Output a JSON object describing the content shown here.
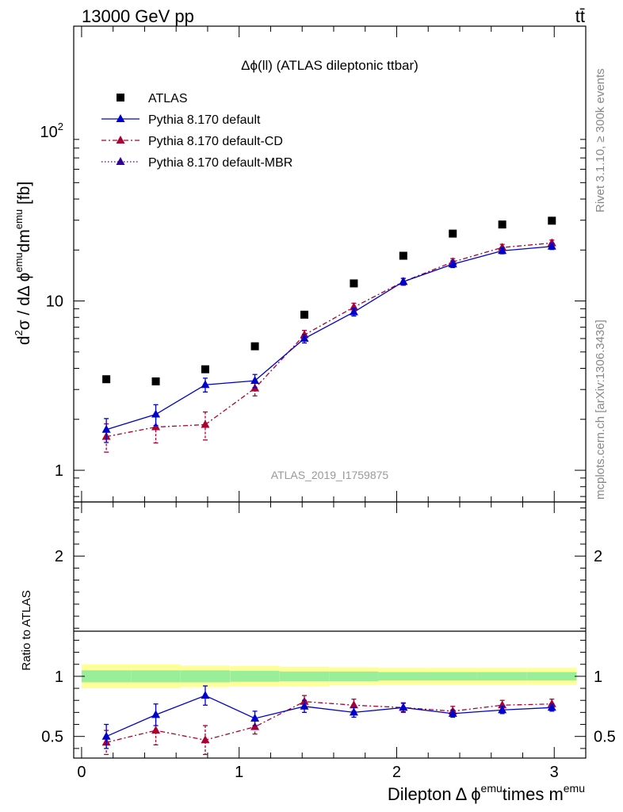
{
  "header": {
    "left": "13000 GeV pp",
    "right": "tt̄"
  },
  "side_labels": {
    "rivet": "Rivet 3.1.10, ≥ 300k events",
    "mcplots": "mcplots.cern.ch [arXiv:1306.3436]"
  },
  "plot": {
    "title": "Δϕ(ll) (ATLAS dileptonic ttbar)",
    "watermark": "ATLAS_2019_I1759875",
    "ylabel_parts": [
      "d",
      "2",
      "σ / dΔ ϕ",
      "emu",
      "dm",
      "emu",
      " [fb]"
    ],
    "ratio_ylabel": "Ratio to ATLAS",
    "xlabel_parts": [
      "Dilepton",
      "Δ ϕ",
      "emu",
      "times m",
      "emu"
    ]
  },
  "legend": [
    {
      "label": "ATLAS",
      "color": "#000000",
      "marker": "square",
      "line": "none"
    },
    {
      "label": "Pythia 8.170 default",
      "color": "#0000cc",
      "marker": "triangle",
      "line": "solid"
    },
    {
      "label": "Pythia 8.170 default-CD",
      "color": "#aa0033",
      "marker": "triangle",
      "line": "dashdot"
    },
    {
      "label": "Pythia 8.170 default-MBR",
      "color": "#330099",
      "marker": "triangle",
      "line": "dotted"
    }
  ],
  "chart_data": {
    "type": "scatter",
    "yscale": "log",
    "xlim": [
      -0.05,
      3.2
    ],
    "ylim": [
      0.65,
      420
    ],
    "ratio_ylim": [
      0.32,
      2.45
    ],
    "x_ticks": [
      "0",
      "1",
      "2",
      "3"
    ],
    "y_ticks": [
      "1",
      "10",
      "10²"
    ],
    "ratio_ticks": [
      "0.5",
      "1",
      "2"
    ],
    "x": [
      0.157,
      0.471,
      0.785,
      1.1,
      1.414,
      1.728,
      2.042,
      2.356,
      2.67,
      2.985
    ],
    "data": {
      "name": "ATLAS",
      "values": [
        3.45,
        3.35,
        3.95,
        5.4,
        8.3,
        12.7,
        18.5,
        25.0,
        28.3,
        29.8
      ],
      "band_inner": [
        0.05,
        0.05,
        0.05,
        0.045,
        0.04,
        0.04,
        0.035,
        0.035,
        0.035,
        0.035
      ],
      "band_outer": [
        0.1,
        0.1,
        0.09,
        0.085,
        0.08,
        0.075,
        0.07,
        0.07,
        0.07,
        0.07
      ]
    },
    "series": [
      {
        "name": "Pythia 8.170 default",
        "values": [
          1.74,
          2.14,
          3.2,
          3.38,
          6.0,
          8.6,
          13.0,
          16.5,
          19.8,
          21.0
        ],
        "errors": [
          0.28,
          0.3,
          0.3,
          0.3,
          0.35,
          0.45,
          0.6,
          0.75,
          0.8,
          0.85
        ],
        "ratio": [
          0.5,
          0.68,
          0.84,
          0.65,
          0.75,
          0.7,
          0.74,
          0.69,
          0.72,
          0.74
        ],
        "ratio_errors": [
          0.1,
          0.09,
          0.08,
          0.06,
          0.05,
          0.04,
          0.035,
          0.03,
          0.03,
          0.03
        ]
      },
      {
        "name": "Pythia 8.170 default-CD",
        "values": [
          1.58,
          1.8,
          1.86,
          3.05,
          6.3,
          9.2,
          13.0,
          17.0,
          20.7,
          22.0
        ],
        "errors": [
          0.3,
          0.35,
          0.35,
          0.3,
          0.4,
          0.5,
          0.6,
          0.8,
          0.9,
          0.9
        ],
        "ratio": [
          0.45,
          0.55,
          0.47,
          0.58,
          0.79,
          0.76,
          0.74,
          0.71,
          0.76,
          0.77
        ],
        "ratio_errors": [
          0.1,
          0.12,
          0.12,
          0.06,
          0.05,
          0.05,
          0.04,
          0.04,
          0.04,
          0.04
        ]
      }
    ]
  }
}
